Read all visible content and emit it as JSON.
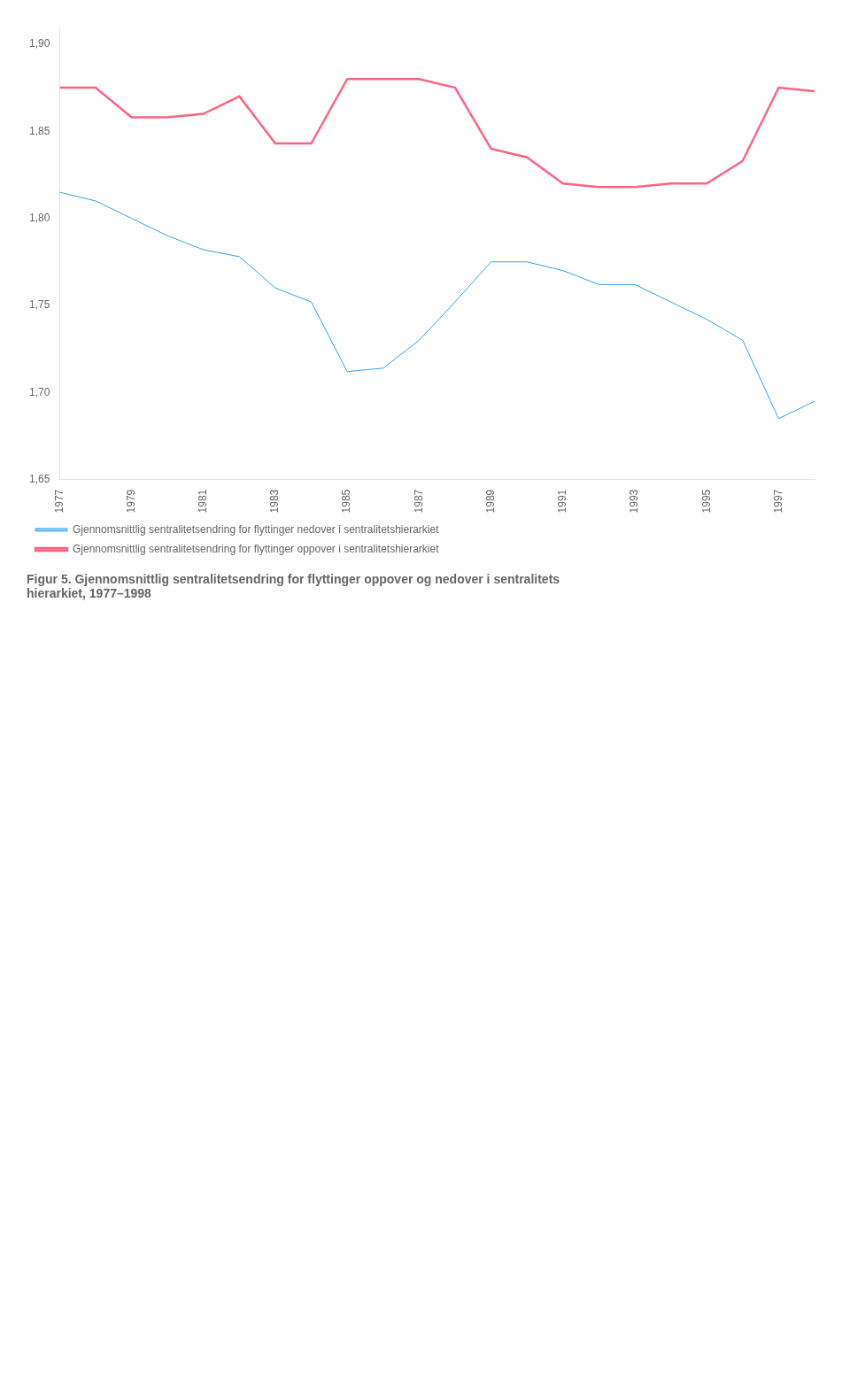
{
  "chart_data": {
    "type": "line",
    "title": [
      "Figur 5. Gjennomsnittlig sentralitetsendring for flyttinger oppover og nedover i sentralitets",
      "hierarkiet, 1977–1998"
    ],
    "x": [
      1977,
      1978,
      1979,
      1980,
      1981,
      1982,
      1983,
      1984,
      1985,
      1986,
      1987,
      1988,
      1989,
      1990,
      1991,
      1992,
      1993,
      1994,
      1995,
      1996,
      1997,
      1998
    ],
    "series": [
      {
        "name": "Gjennomsnittlig sentralitetsendring for flyttinger nedover i sentralitetshierarkiet",
        "values": [
          1.815,
          1.81,
          1.8,
          1.79,
          1.782,
          1.778,
          1.76,
          1.752,
          1.712,
          1.714,
          1.73,
          1.752,
          1.775,
          1.775,
          1.77,
          1.762,
          1.762,
          1.752,
          1.742,
          1.73,
          1.685,
          1.695
        ]
      },
      {
        "name": "Gjennomsnittlig sentralitetsendring for flyttinger oppover i sentralitetshierarkiet",
        "values": [
          1.875,
          1.875,
          1.858,
          1.858,
          1.86,
          1.87,
          1.843,
          1.843,
          1.88,
          1.88,
          1.88,
          1.875,
          1.84,
          1.835,
          1.82,
          1.818,
          1.818,
          1.82,
          1.82,
          1.833,
          1.875,
          1.873
        ]
      }
    ],
    "xlim": [
      1977,
      1998
    ],
    "xticks": [
      1977,
      1979,
      1981,
      1983,
      1985,
      1987,
      1989,
      1991,
      1993,
      1995,
      1997
    ],
    "ylim": [
      1.65,
      1.91
    ],
    "yticks": [
      {
        "value": 1.65,
        "label": "1,65"
      },
      {
        "value": 1.7,
        "label": "1,70"
      },
      {
        "value": 1.75,
        "label": "1,75"
      },
      {
        "value": 1.8,
        "label": "1,80"
      },
      {
        "value": 1.85,
        "label": "1,85"
      },
      {
        "value": 1.9,
        "label": "1,90"
      }
    ],
    "grid": false,
    "legend": "bottom"
  }
}
